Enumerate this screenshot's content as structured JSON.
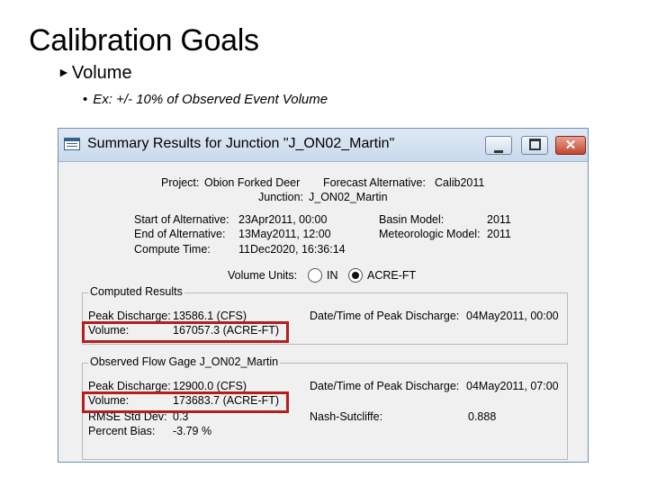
{
  "slide": {
    "title": "Calibration Goals",
    "bullet1": "Volume",
    "bullet1_marker": "►",
    "bullet2_marker": "•",
    "bullet2": "Ex: +/- 10% of Observed Event Volume"
  },
  "window": {
    "title": "Summary Results for Junction \"J_ON02_Martin\"",
    "close_glyph": "✕",
    "project_label": "Project:",
    "project_value": "Obion Forked Deer",
    "forecast_label": "Forecast Alternative:",
    "forecast_value": "Calib2011",
    "junction_label": "Junction:",
    "junction_value": "J_ON02_Martin",
    "start_label": "Start of Alternative:",
    "start_value": "23Apr2011, 00:00",
    "end_label": "End of Alternative:",
    "end_value": "13May2011, 12:00",
    "compute_label": "Compute Time:",
    "compute_value": "11Dec2020, 16:36:14",
    "basin_label": "Basin Model:",
    "basin_value": "2011",
    "met_label": "Meteorologic Model:",
    "met_value": "2011",
    "units_label": "Volume Units:",
    "units_in": "IN",
    "units_acre": "ACRE-FT",
    "units_selected": "ACRE-FT"
  },
  "computed": {
    "group_label": "Computed Results",
    "peak_label": "Peak Discharge:",
    "peak_value": "13586.1 (CFS)",
    "volume_label": "Volume:",
    "volume_value": "167057.3 (ACRE-FT)",
    "peak_time_label": "Date/Time of Peak Discharge:",
    "peak_time_value": "04May2011, 00:00"
  },
  "observed": {
    "group_label": "Observed Flow Gage J_ON02_Martin",
    "peak_label": "Peak Discharge:",
    "peak_value": "12900.0 (CFS)",
    "volume_label": "Volume:",
    "volume_value": "173683.7 (ACRE-FT)",
    "rmse_label": "RMSE Std Dev:",
    "rmse_value": "0.3",
    "bias_label": "Percent Bias:",
    "bias_value": "-3.79 %",
    "peak_time_label": "Date/Time of Peak Discharge:",
    "peak_time_value": "04May2011, 07:00",
    "nash_label": "Nash-Sutcliffe:",
    "nash_value": "0.888"
  },
  "colors": {
    "highlight": "#b41e1e",
    "titlebar": "#c9d9ec"
  }
}
